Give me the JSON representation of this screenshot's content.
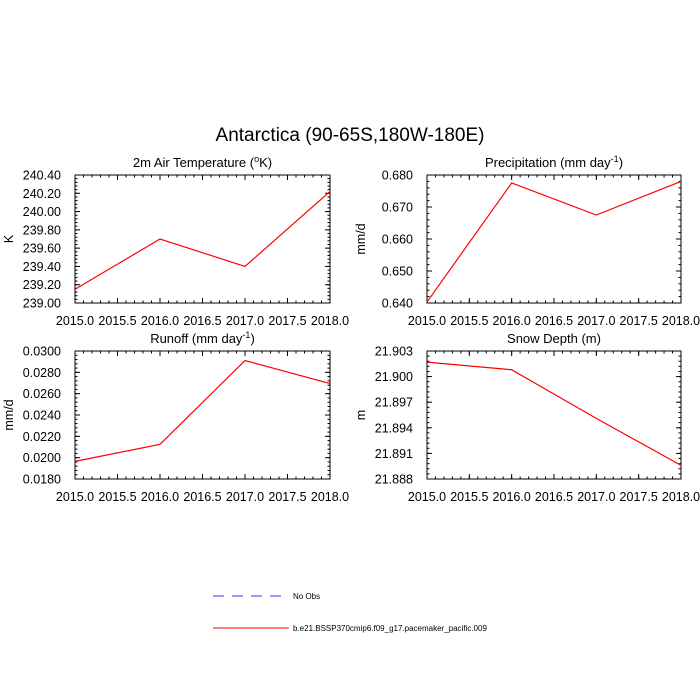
{
  "figure": {
    "title": "Antarctica (90-65S,180W-180E)"
  },
  "legend": [
    {
      "label": "No Obs",
      "color": "#3333ff",
      "style": "dashed"
    },
    {
      "label": "b.e21.BSSP370cmip6.f09_g17.pacemaker_pacific.009",
      "color": "#ff0000",
      "style": "solid"
    }
  ],
  "chart_data": [
    {
      "type": "line",
      "title": "2m Air Temperature (°K)",
      "title_main": "2m Air Temperature (",
      "title_sup": "o",
      "title_end": "K)",
      "ylabel": "K",
      "xlim": [
        2015.0,
        2018.0
      ],
      "xticks": [
        "2015.0",
        "2015.5",
        "2016.0",
        "2016.5",
        "2017.0",
        "2017.5",
        "2018.0"
      ],
      "ylim": [
        239.0,
        240.4
      ],
      "yticks": [
        "239.00",
        "239.20",
        "239.40",
        "239.60",
        "239.80",
        "240.00",
        "240.20",
        "240.40"
      ],
      "series": [
        {
          "name": "b.e21.BSSP370cmip6.f09_g17.pacemaker_pacific.009",
          "color": "#ff0000",
          "x": [
            2015,
            2016,
            2017,
            2018
          ],
          "y": [
            239.15,
            239.7,
            239.4,
            240.22
          ]
        }
      ]
    },
    {
      "type": "line",
      "title": "Precipitation (mm day-1)",
      "title_main": "Precipitation (mm day",
      "title_sup": "-1",
      "title_end": ")",
      "ylabel": "mm/d",
      "xlim": [
        2015.0,
        2018.0
      ],
      "xticks": [
        "2015.0",
        "2015.5",
        "2016.0",
        "2016.5",
        "2017.0",
        "2017.5",
        "2018.0"
      ],
      "ylim": [
        0.64,
        0.68
      ],
      "yticks": [
        "0.640",
        "0.650",
        "0.660",
        "0.670",
        "0.680"
      ],
      "series": [
        {
          "name": "b.e21.BSSP370cmip6.f09_g17.pacemaker_pacific.009",
          "color": "#ff0000",
          "x": [
            2015,
            2016,
            2017,
            2018
          ],
          "y": [
            0.6403,
            0.6775,
            0.6675,
            0.678
          ]
        }
      ]
    },
    {
      "type": "line",
      "title": "Runoff (mm day-1)",
      "title_main": "Runoff (mm day",
      "title_sup": "-1",
      "title_end": ")",
      "ylabel": "mm/d",
      "xlim": [
        2015.0,
        2018.0
      ],
      "xticks": [
        "2015.0",
        "2015.5",
        "2016.0",
        "2016.5",
        "2017.0",
        "2017.5",
        "2018.0"
      ],
      "ylim": [
        0.018,
        0.03
      ],
      "yticks": [
        "0.0180",
        "0.0200",
        "0.0220",
        "0.0240",
        "0.0260",
        "0.0280",
        "0.0300"
      ],
      "series": [
        {
          "name": "b.e21.BSSP370cmip6.f09_g17.pacemaker_pacific.009",
          "color": "#ff0000",
          "x": [
            2015,
            2016,
            2017,
            2018
          ],
          "y": [
            0.01965,
            0.02125,
            0.0291,
            0.02695
          ]
        }
      ]
    },
    {
      "type": "line",
      "title": "Snow Depth (m)",
      "title_main": "Snow Depth (m)",
      "title_sup": "",
      "title_end": "",
      "ylabel": "m",
      "xlim": [
        2015.0,
        2018.0
      ],
      "xticks": [
        "2015.0",
        "2015.5",
        "2016.0",
        "2016.5",
        "2017.0",
        "2017.5",
        "2018.0"
      ],
      "ylim": [
        21.888,
        21.903
      ],
      "yticks": [
        "21.888",
        "21.891",
        "21.894",
        "21.897",
        "21.900",
        "21.903"
      ],
      "series": [
        {
          "name": "b.e21.BSSP370cmip6.f09_g17.pacemaker_pacific.009",
          "color": "#ff0000",
          "x": [
            2015,
            2016,
            2017,
            2018
          ],
          "y": [
            21.9017,
            21.9008,
            21.8951,
            21.8896
          ]
        }
      ]
    }
  ]
}
